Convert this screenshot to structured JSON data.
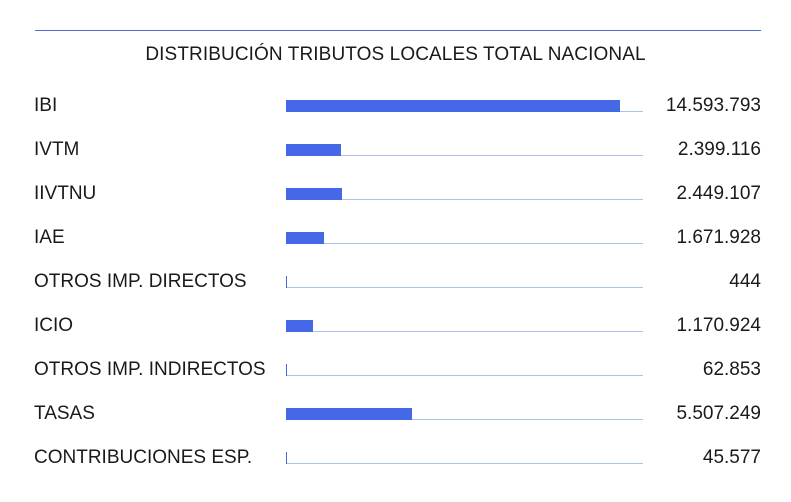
{
  "chart_data": {
    "type": "bar",
    "orientation": "horizontal",
    "title": "DISTRIBUCIÓN TRIBUTOS LOCALES TOTAL NACIONAL",
    "categories": [
      "IBI",
      "IVTM",
      "IIVTNU",
      "IAE",
      "OTROS IMP. DIRECTOS",
      "ICIO",
      "OTROS IMP. INDIRECTOS",
      "TASAS",
      "CONTRIBUCIONES ESP."
    ],
    "values": [
      14593793,
      2399116,
      2449107,
      1671928,
      444,
      1170924,
      62853,
      5507249,
      45577
    ],
    "value_labels": [
      "14.593.793",
      "2.399.116",
      "2.449.107",
      "1.671.928",
      "444",
      "1.170.924",
      "62.853",
      "5.507.249",
      "45.577"
    ],
    "xlim": [
      0,
      15600000
    ],
    "grid": false,
    "legend": "none",
    "colors": {
      "bar": "#4568e6",
      "track": "#aebfea",
      "rule": "#4f6fd6"
    }
  }
}
